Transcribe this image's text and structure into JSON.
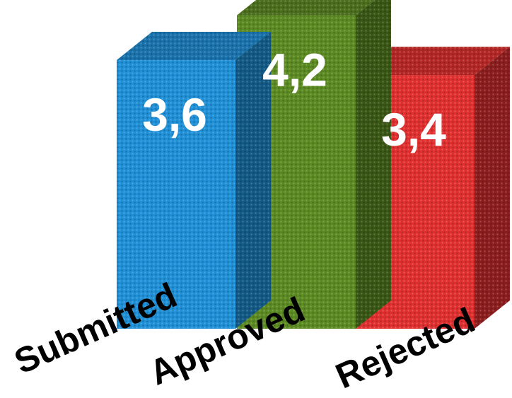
{
  "chart_data": {
    "type": "bar",
    "title": "",
    "xlabel": "",
    "ylabel": "",
    "ylim": [
      0,
      4.5
    ],
    "grid": false,
    "legend": "none",
    "categories": [
      "Submitted",
      "Approved",
      "Rejected"
    ],
    "values": [
      3.6,
      4.2,
      3.4
    ],
    "value_labels": [
      "3,6",
      "4,2",
      "3,4"
    ],
    "colors": [
      "#1f8fd6",
      "#5c8a22",
      "#e02f2f"
    ]
  }
}
